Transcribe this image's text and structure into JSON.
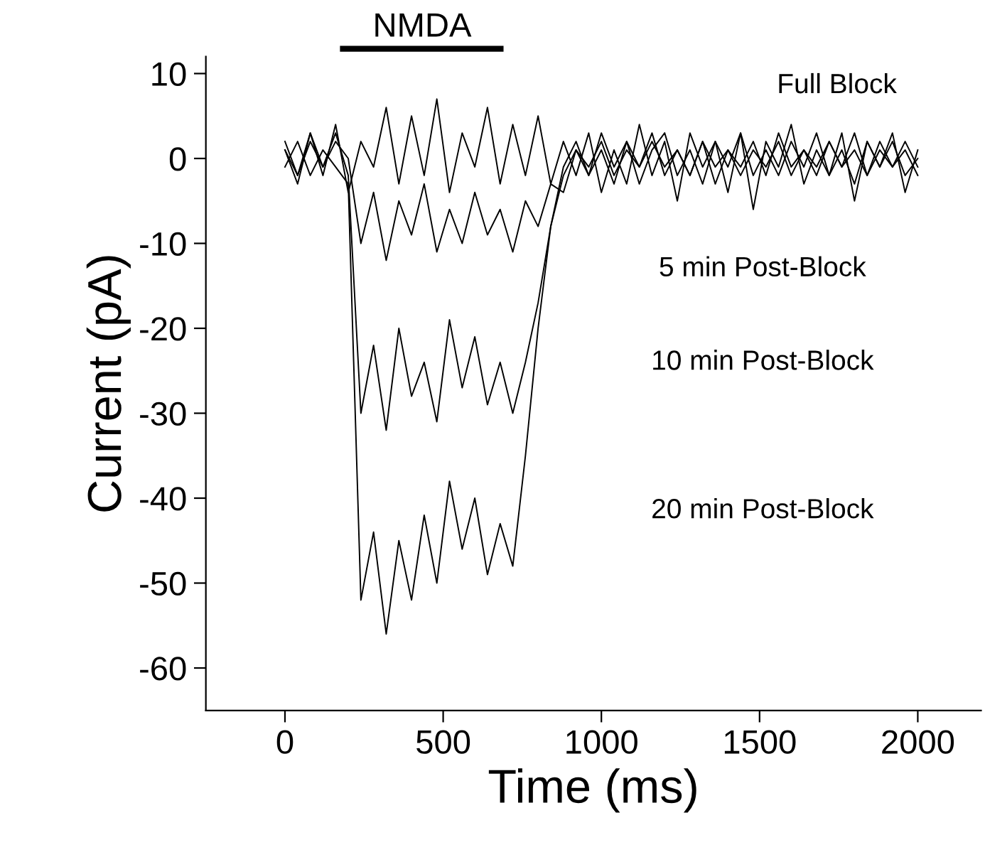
{
  "chart_data": {
    "type": "line",
    "xlabel": "Time (ms)",
    "ylabel": "Current (pA)",
    "x": [
      0,
      40,
      80,
      120,
      160,
      200,
      240,
      280,
      320,
      360,
      400,
      440,
      480,
      520,
      560,
      600,
      640,
      680,
      720,
      760,
      800,
      840,
      880,
      920,
      960,
      1000,
      1040,
      1080,
      1120,
      1160,
      1200,
      1240,
      1280,
      1320,
      1360,
      1400,
      1440,
      1480,
      1520,
      1560,
      1600,
      1640,
      1680,
      1720,
      1760,
      1800,
      1840,
      1880,
      1920,
      1960,
      2000
    ],
    "series": [
      {
        "color": "#000000",
        "values": [
          1,
          -3,
          3,
          -2,
          4,
          -4,
          2,
          -1,
          6,
          -3,
          5,
          -2,
          7,
          -4,
          3,
          -1,
          6,
          -3,
          4,
          -2,
          5,
          -3,
          2,
          -2,
          3,
          -4,
          1,
          -3,
          4,
          -2,
          2,
          -5,
          3,
          -1,
          2,
          -4,
          3,
          -6,
          2,
          -1,
          4,
          -3,
          1,
          -2,
          3,
          -5,
          2,
          -1,
          3,
          -4,
          1
        ]
      },
      {
        "color": "#000000",
        "values": [
          2,
          -2,
          3,
          -1,
          2,
          0,
          -10,
          -4,
          -12,
          -5,
          -9,
          -3,
          -11,
          -6,
          -10,
          -4,
          -9,
          -6,
          -11,
          -5,
          -8,
          -3,
          -4,
          1,
          -2,
          3,
          -1,
          2,
          -3,
          1,
          3,
          -2,
          1,
          -3,
          2,
          -1,
          3,
          -2,
          1,
          -2,
          2,
          -1,
          3,
          -2,
          1,
          -3,
          2,
          -1,
          2,
          -2,
          0
        ]
      },
      {
        "color": "#000000",
        "values": [
          1,
          -2,
          2,
          -1,
          3,
          -2,
          -30,
          -22,
          -32,
          -20,
          -28,
          -24,
          -31,
          -19,
          -27,
          -21,
          -29,
          -24,
          -30,
          -24,
          -17,
          -8,
          -1,
          2,
          -2,
          1,
          -3,
          2,
          -1,
          3,
          -2,
          1,
          -2,
          2,
          -3,
          1,
          -1,
          2,
          -2,
          3,
          -1,
          1,
          -2,
          2,
          -1,
          3,
          -2,
          1,
          -1,
          2,
          -1
        ]
      },
      {
        "color": "#000000",
        "values": [
          -1,
          2,
          -2,
          1,
          -1,
          -3,
          -52,
          -44,
          -56,
          -45,
          -52,
          -42,
          -50,
          -38,
          -46,
          -40,
          -49,
          -43,
          -48,
          -35,
          -20,
          -8,
          -2,
          1,
          -1,
          2,
          -2,
          1,
          -1,
          2,
          -1,
          1,
          -2,
          2,
          -1,
          1,
          -2,
          1,
          -1,
          2,
          -2,
          1,
          -1,
          2,
          -1,
          1,
          -2,
          2,
          -1,
          1,
          -2
        ]
      }
    ],
    "xlim": [
      -250,
      2200
    ],
    "ylim": [
      -65,
      12
    ],
    "xticks": [
      0,
      500,
      1000,
      1500,
      2000
    ],
    "yticks": [
      -60,
      -50,
      -40,
      -30,
      -20,
      -10,
      0,
      10
    ],
    "annotations": [
      "NMDA",
      "Full Block",
      "5 min Post-Block",
      "10 min Post-Block",
      "20 min Post-Block"
    ],
    "grid": false,
    "marker": "none",
    "line_style": "solid"
  }
}
